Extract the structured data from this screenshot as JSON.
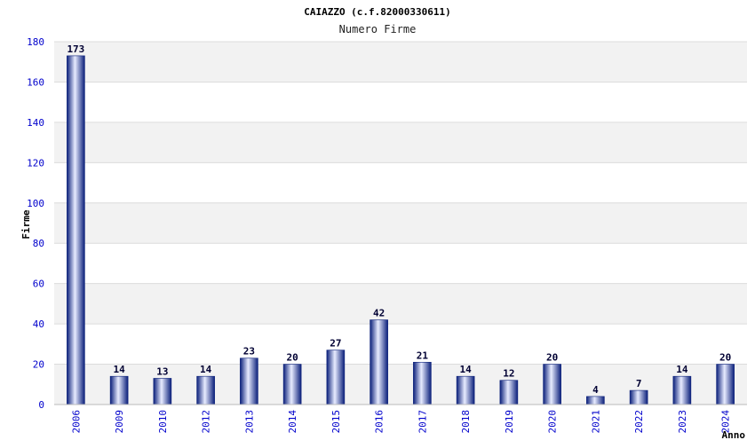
{
  "chart_data": {
    "type": "bar",
    "title": "CAIAZZO (c.f.82000330611)",
    "subtitle": "Numero Firme",
    "xlabel": "Anno",
    "ylabel": "Firme",
    "categories": [
      "2006",
      "2009",
      "2010",
      "2012",
      "2013",
      "2014",
      "2015",
      "2016",
      "2017",
      "2018",
      "2019",
      "2020",
      "2021",
      "2022",
      "2023",
      "2024"
    ],
    "values": [
      173,
      14,
      13,
      14,
      23,
      20,
      27,
      42,
      21,
      14,
      12,
      20,
      4,
      7,
      14,
      20
    ],
    "ylim": [
      0,
      180
    ],
    "yticks": [
      0,
      20,
      40,
      60,
      80,
      100,
      120,
      140,
      160,
      180
    ],
    "grid": true,
    "legend": "none",
    "colors": {
      "bar_dark": "#0a1f7a",
      "bar_light": "#e8ecff",
      "band": "#f2f2f2",
      "grid": "#dcdcdc",
      "tick_text": "#0000cc"
    }
  }
}
